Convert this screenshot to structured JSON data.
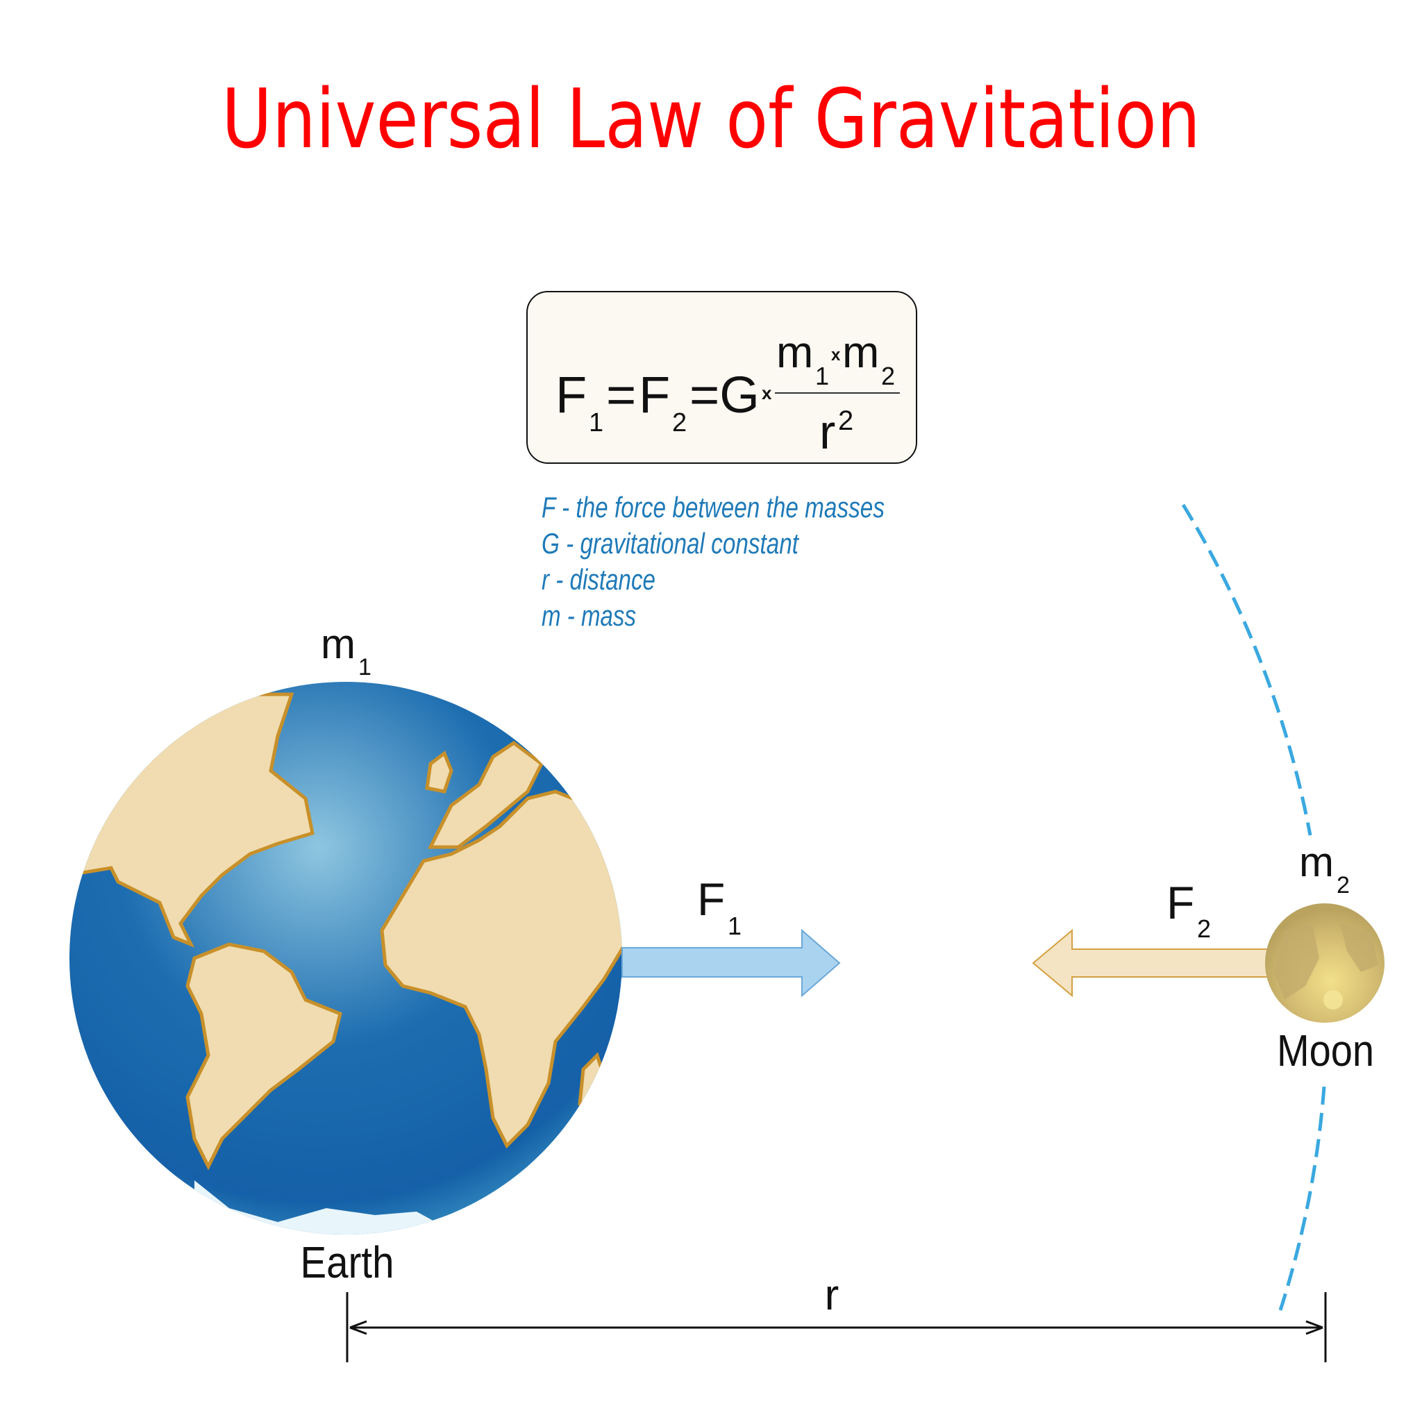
{
  "title": "Universal Law of Gravitation",
  "formula": {
    "F": "F",
    "sub1": "1",
    "sub2": "2",
    "eq1": "=",
    "eqG": "=G",
    "times": "x",
    "m": "m",
    "r": "r",
    "sq": "2"
  },
  "legend": [
    "F - the force between the masses",
    "G - gravitational constant",
    "r - distance",
    "m - mass"
  ],
  "labels": {
    "m": "m",
    "one": "1",
    "two": "2",
    "F": "F",
    "earth": "Earth",
    "moon": "Moon",
    "r": "r"
  },
  "colors": {
    "title": "#ff0000",
    "legend": "#1f7ab8",
    "f1_arrow": "#aad3f0",
    "f2_arrow": "#f4e4c4",
    "orbit": "#3aa8e0",
    "formula_box": "#fbf9f2"
  }
}
